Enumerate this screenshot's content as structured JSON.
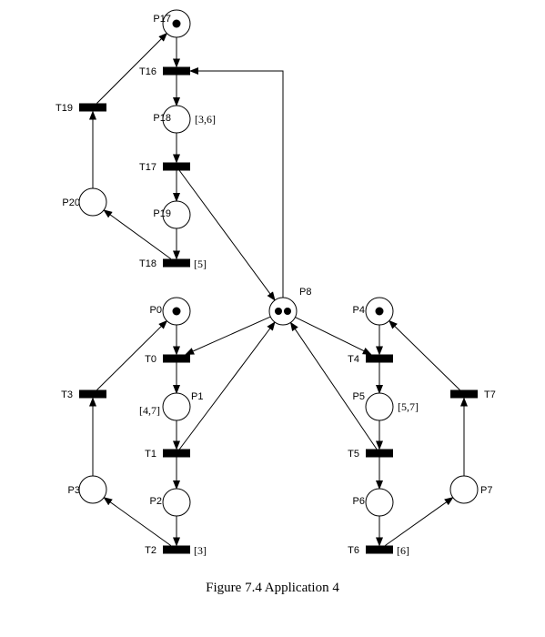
{
  "caption": "Figure 7.4 Application 4",
  "places": [
    {
      "id": "P17",
      "label": "P17",
      "tokens": 1,
      "interval": ""
    },
    {
      "id": "P18",
      "label": "P18",
      "tokens": 0,
      "interval": "[3,6]"
    },
    {
      "id": "P19",
      "label": "P19",
      "tokens": 0,
      "interval": ""
    },
    {
      "id": "P20",
      "label": "P20",
      "tokens": 0,
      "interval": ""
    },
    {
      "id": "P8",
      "label": "P8",
      "tokens": 2,
      "interval": ""
    },
    {
      "id": "P0",
      "label": "P0",
      "tokens": 1,
      "interval": ""
    },
    {
      "id": "P1",
      "label": "P1",
      "tokens": 0,
      "interval": "[4,7]"
    },
    {
      "id": "P2",
      "label": "P2",
      "tokens": 0,
      "interval": ""
    },
    {
      "id": "P3",
      "label": "P3",
      "tokens": 0,
      "interval": ""
    },
    {
      "id": "P4",
      "label": "P4",
      "tokens": 1,
      "interval": ""
    },
    {
      "id": "P5",
      "label": "P5",
      "tokens": 0,
      "interval": "[5,7]"
    },
    {
      "id": "P6",
      "label": "P6",
      "tokens": 0,
      "interval": ""
    },
    {
      "id": "P7",
      "label": "P7",
      "tokens": 0,
      "interval": ""
    }
  ],
  "transitions": [
    {
      "id": "T16",
      "label": "T16",
      "delay": ""
    },
    {
      "id": "T17",
      "label": "T17",
      "delay": ""
    },
    {
      "id": "T18",
      "label": "T18",
      "delay": "[5]"
    },
    {
      "id": "T19",
      "label": "T19",
      "delay": ""
    },
    {
      "id": "T0",
      "label": "T0",
      "delay": ""
    },
    {
      "id": "T1",
      "label": "T1",
      "delay": ""
    },
    {
      "id": "T2",
      "label": "T2",
      "delay": "[3]"
    },
    {
      "id": "T3",
      "label": "T3",
      "delay": ""
    },
    {
      "id": "T4",
      "label": "T4",
      "delay": ""
    },
    {
      "id": "T5",
      "label": "T5",
      "delay": ""
    },
    {
      "id": "T6",
      "label": "T6",
      "delay": "[6]"
    },
    {
      "id": "T7",
      "label": "T7",
      "delay": ""
    }
  ],
  "arcs": [
    {
      "from": "P17",
      "to": "T16"
    },
    {
      "from": "T16",
      "to": "P18"
    },
    {
      "from": "P18",
      "to": "T17"
    },
    {
      "from": "T17",
      "to": "P19"
    },
    {
      "from": "P19",
      "to": "T18"
    },
    {
      "from": "T18",
      "to": "P20"
    },
    {
      "from": "P20",
      "to": "T19"
    },
    {
      "from": "T19",
      "to": "P17"
    },
    {
      "from": "T17",
      "to": "P8"
    },
    {
      "from": "P8",
      "to": "T16"
    },
    {
      "from": "P8",
      "to": "T0"
    },
    {
      "from": "P0",
      "to": "T0"
    },
    {
      "from": "T0",
      "to": "P1"
    },
    {
      "from": "P1",
      "to": "T1"
    },
    {
      "from": "T1",
      "to": "P2"
    },
    {
      "from": "T1",
      "to": "P8"
    },
    {
      "from": "P2",
      "to": "T2"
    },
    {
      "from": "T2",
      "to": "P3"
    },
    {
      "from": "P3",
      "to": "T3"
    },
    {
      "from": "T3",
      "to": "P0"
    },
    {
      "from": "P8",
      "to": "T4"
    },
    {
      "from": "P4",
      "to": "T4"
    },
    {
      "from": "T4",
      "to": "P5"
    },
    {
      "from": "P5",
      "to": "T5"
    },
    {
      "from": "T5",
      "to": "P8"
    },
    {
      "from": "T5",
      "to": "P6"
    },
    {
      "from": "P6",
      "to": "T6"
    },
    {
      "from": "T6",
      "to": "P7"
    },
    {
      "from": "P7",
      "to": "T7"
    },
    {
      "from": "T7",
      "to": "P4"
    }
  ]
}
